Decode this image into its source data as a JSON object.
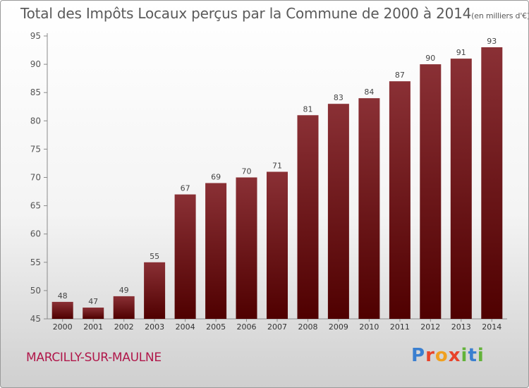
{
  "chart_data": {
    "type": "bar",
    "title": "Total des Impôts Locaux perçus par la Commune de 2000 à 2014",
    "subtitle": "(en milliers d'€)",
    "categories": [
      "2000",
      "2001",
      "2002",
      "2003",
      "2004",
      "2005",
      "2006",
      "2007",
      "2008",
      "2009",
      "2010",
      "2011",
      "2012",
      "2013",
      "2014"
    ],
    "values": [
      48,
      47,
      49,
      55,
      67,
      69,
      70,
      71,
      81,
      83,
      84,
      87,
      90,
      91,
      93
    ],
    "ylim": [
      45,
      95
    ],
    "yticks": [
      45,
      50,
      55,
      60,
      65,
      70,
      75,
      80,
      85,
      90,
      95
    ],
    "grid": false,
    "bar_color_top": "#8a3035",
    "bar_color_bottom": "#4f0000"
  },
  "footer": {
    "commune": "MARCILLY-SUR-MAULNE",
    "logo_letters": [
      "P",
      "r",
      "o",
      "x",
      "i",
      "t",
      "i"
    ]
  }
}
